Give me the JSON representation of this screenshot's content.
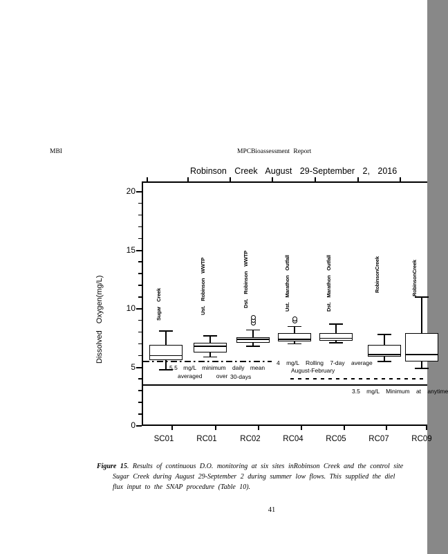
{
  "page": {
    "header_left": "MBI",
    "header_center": "MPCBioassessment Report",
    "page_number": "41",
    "ink_color": "#000000",
    "paper_color": "#ffffff"
  },
  "chart_data": {
    "type": "boxplot",
    "title": "Robinson Creek August 29-September 2, 2016",
    "xlabel": "",
    "ylabel": "Dissolved Oxygen(mg/L)",
    "ylim": [
      0,
      20.9
    ],
    "yticks_major": [
      0,
      5,
      10,
      15,
      20
    ],
    "ytick_minor_step": 1,
    "grid": false,
    "legend": null,
    "categories": [
      "SC01",
      "RC01",
      "RC02",
      "RC04",
      "RC05",
      "RC07",
      "RC09"
    ],
    "series": [
      {
        "site": "SC01",
        "label": "Sugar Creek",
        "whisker_low": 4.8,
        "q1": 5.6,
        "median": 6.0,
        "q3": 6.9,
        "whisker_high": 8.1,
        "outliers": []
      },
      {
        "site": "RC01",
        "label": "Ust. Robinson WWTP",
        "whisker_low": 5.9,
        "q1": 6.3,
        "median": 6.8,
        "q3": 7.1,
        "whisker_high": 7.7,
        "outliers": []
      },
      {
        "site": "RC02",
        "label": "Dst. Robinson WWTP",
        "whisker_low": 6.8,
        "q1": 7.1,
        "median": 7.4,
        "q3": 7.6,
        "whisker_high": 8.2,
        "outliers": [
          8.8,
          9.0,
          9.25
        ]
      },
      {
        "site": "RC04",
        "label": "Ust. Marathon Outfall",
        "whisker_low": 7.0,
        "q1": 7.2,
        "median": 7.4,
        "q3": 7.9,
        "whisker_high": 8.5,
        "outliers": [
          8.95,
          9.15
        ]
      },
      {
        "site": "RC05",
        "label": "Dst. Marathon Outfall",
        "whisker_low": 7.1,
        "q1": 7.3,
        "median": 7.5,
        "q3": 7.9,
        "whisker_high": 8.7,
        "outliers": []
      },
      {
        "site": "RC07",
        "label": "RobinsonCreek",
        "whisker_low": 5.5,
        "q1": 5.9,
        "median": 6.1,
        "q3": 6.9,
        "whisker_high": 7.8,
        "outliers": []
      },
      {
        "site": "RC09",
        "label": "RobinsonCreek",
        "whisker_low": 4.9,
        "q1": 5.5,
        "median": 6.1,
        "q3": 7.9,
        "whisker_high": 11.0,
        "outliers": []
      }
    ],
    "reference_lines": [
      {
        "value": 5.5,
        "style": "dash-dot",
        "label": "5.5 mg/L minimum averaged over daily mean 30-days"
      },
      {
        "value": 4.0,
        "style": "dashed",
        "label": "4 mg/L Rolling 7-day average August-February"
      },
      {
        "value": 3.5,
        "style": "solid",
        "label": "3.5 mg/L Minimum at anytime"
      }
    ],
    "annotations": {
      "min55_1": "5.5 mg/L minimum",
      "min55_2": "averaged over",
      "min55_3": "daily mean",
      "min55_4": "30-days",
      "min4_1": "4 mg/L Rolling 7-day average",
      "min4_2": "August-February",
      "min35_1": "3.5 mg/L Minimum at anytime"
    }
  },
  "caption": {
    "figure_label": "Figure 15",
    "line1": ". Results of continuous D.O. monitoring at six sites inRobinson Creek and the control site",
    "line2": "Sugar Creek during August 29-September 2 during summer low flows. This supplied the diel",
    "line3": "flux input to the SNAP procedure (Table 10)."
  }
}
